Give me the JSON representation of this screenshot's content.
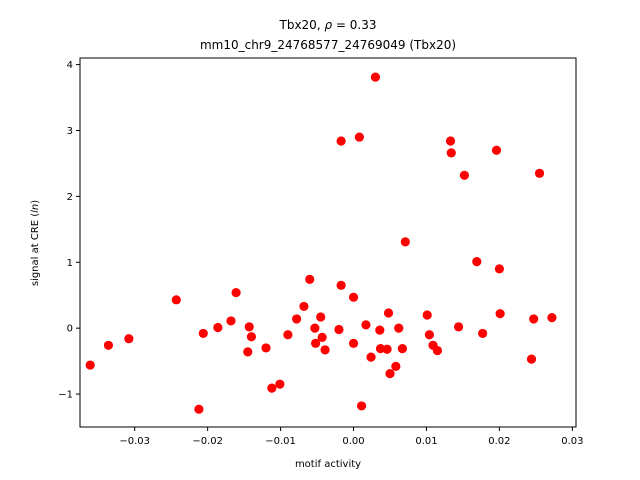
{
  "chart_data": {
    "type": "scatter",
    "title_line1": "Tbx20, ρ = 0.33",
    "title_line2": "mm10_chr9_24768577_24769049 (Tbx20)",
    "xlabel": "motif activity",
    "ylabel": "signal at CRE (ln)",
    "xlim": [
      -0.0375,
      0.0305
    ],
    "ylim": [
      -1.5,
      4.1
    ],
    "xticks": [
      -0.03,
      -0.02,
      -0.01,
      0.0,
      0.01,
      0.02,
      0.03
    ],
    "xtick_labels": [
      "−0.03",
      "−0.02",
      "−0.01",
      "0.00",
      "0.01",
      "0.02",
      "0.03"
    ],
    "yticks": [
      -1,
      0,
      1,
      2,
      3,
      4
    ],
    "ytick_labels": [
      "−1",
      "0",
      "1",
      "2",
      "3",
      "4"
    ],
    "grid": false,
    "marker_color": "#ff0000",
    "points": [
      {
        "x": -0.0361,
        "y": -0.56
      },
      {
        "x": -0.0336,
        "y": -0.26
      },
      {
        "x": -0.0308,
        "y": -0.16
      },
      {
        "x": -0.0243,
        "y": 0.43
      },
      {
        "x": -0.0212,
        "y": -1.23
      },
      {
        "x": -0.0206,
        "y": -0.08
      },
      {
        "x": -0.0186,
        "y": 0.01
      },
      {
        "x": -0.0168,
        "y": 0.11
      },
      {
        "x": -0.0161,
        "y": 0.54
      },
      {
        "x": -0.0143,
        "y": 0.02
      },
      {
        "x": -0.014,
        "y": -0.13
      },
      {
        "x": -0.0145,
        "y": -0.36
      },
      {
        "x": -0.012,
        "y": -0.3
      },
      {
        "x": -0.0112,
        "y": -0.91
      },
      {
        "x": -0.0101,
        "y": -0.85
      },
      {
        "x": -0.009,
        "y": -0.1
      },
      {
        "x": -0.0078,
        "y": 0.14
      },
      {
        "x": -0.0068,
        "y": 0.33
      },
      {
        "x": -0.006,
        "y": 0.74
      },
      {
        "x": -0.0053,
        "y": 0.0
      },
      {
        "x": -0.0052,
        "y": -0.23
      },
      {
        "x": -0.0045,
        "y": 0.17
      },
      {
        "x": -0.0043,
        "y": -0.14
      },
      {
        "x": -0.0039,
        "y": -0.33
      },
      {
        "x": -0.002,
        "y": -0.02
      },
      {
        "x": -0.0017,
        "y": 2.84
      },
      {
        "x": -0.0017,
        "y": 0.65
      },
      {
        "x": 0.0,
        "y": 0.47
      },
      {
        "x": 0.0,
        "y": -0.23
      },
      {
        "x": 0.0008,
        "y": 2.9
      },
      {
        "x": 0.0011,
        "y": -1.18
      },
      {
        "x": 0.0017,
        "y": 0.05
      },
      {
        "x": 0.0024,
        "y": -0.44
      },
      {
        "x": 0.003,
        "y": 3.81
      },
      {
        "x": 0.0036,
        "y": -0.03
      },
      {
        "x": 0.0037,
        "y": -0.31
      },
      {
        "x": 0.0046,
        "y": -0.32
      },
      {
        "x": 0.0048,
        "y": 0.23
      },
      {
        "x": 0.005,
        "y": -0.69
      },
      {
        "x": 0.0058,
        "y": -0.58
      },
      {
        "x": 0.0062,
        "y": 0.0
      },
      {
        "x": 0.0067,
        "y": -0.31
      },
      {
        "x": 0.0071,
        "y": 1.31
      },
      {
        "x": 0.0101,
        "y": 0.2
      },
      {
        "x": 0.0104,
        "y": -0.1
      },
      {
        "x": 0.0109,
        "y": -0.26
      },
      {
        "x": 0.0115,
        "y": -0.34
      },
      {
        "x": 0.0133,
        "y": 2.84
      },
      {
        "x": 0.0134,
        "y": 2.66
      },
      {
        "x": 0.0144,
        "y": 0.02
      },
      {
        "x": 0.0152,
        "y": 2.32
      },
      {
        "x": 0.0169,
        "y": 1.01
      },
      {
        "x": 0.0177,
        "y": -0.08
      },
      {
        "x": 0.0196,
        "y": 2.7
      },
      {
        "x": 0.02,
        "y": 0.9
      },
      {
        "x": 0.0201,
        "y": 0.22
      },
      {
        "x": 0.0244,
        "y": -0.47
      },
      {
        "x": 0.0247,
        "y": 0.14
      },
      {
        "x": 0.0255,
        "y": 2.35
      },
      {
        "x": 0.0272,
        "y": 0.16
      }
    ]
  }
}
